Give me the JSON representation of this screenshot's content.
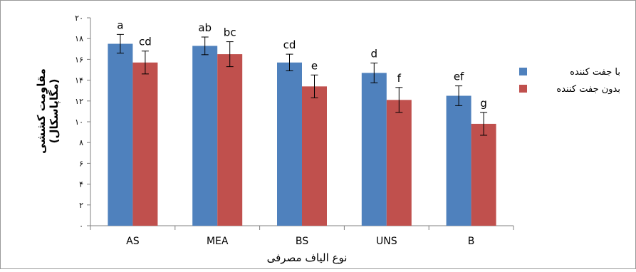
{
  "chart_data": {
    "type": "bar",
    "categories": [
      "AS",
      "MEA",
      "BS",
      "UNS",
      "B"
    ],
    "series": [
      {
        "name": "با جفت کننده",
        "color": "#4F81BD",
        "values": [
          17.5,
          17.3,
          15.7,
          14.7,
          12.5
        ],
        "errors": [
          0.9,
          0.85,
          0.8,
          0.95,
          0.95
        ],
        "labels": [
          "a",
          "ab",
          "cd",
          "d",
          "ef"
        ]
      },
      {
        "name": "بدون جفت کننده",
        "color": "#C0504D",
        "values": [
          15.7,
          16.5,
          13.4,
          12.1,
          9.8
        ],
        "errors": [
          1.1,
          1.2,
          1.1,
          1.2,
          1.1
        ],
        "labels": [
          "cd",
          "bc",
          "e",
          "f",
          "g"
        ]
      }
    ],
    "ylim": [
      0,
      20
    ],
    "yticks": [
      "۰",
      "۲",
      "۴",
      "۶",
      "۸",
      "۱۰",
      "۱۲",
      "۱۴",
      "۱۶",
      "۱۸",
      "۲۰"
    ],
    "xlabel": "نوع الیاف مصرفی",
    "ylabel_line1": "مقاومت کششی",
    "ylabel_line2": "(مگاپاسکال)",
    "legend_position": "right",
    "grid": false
  }
}
